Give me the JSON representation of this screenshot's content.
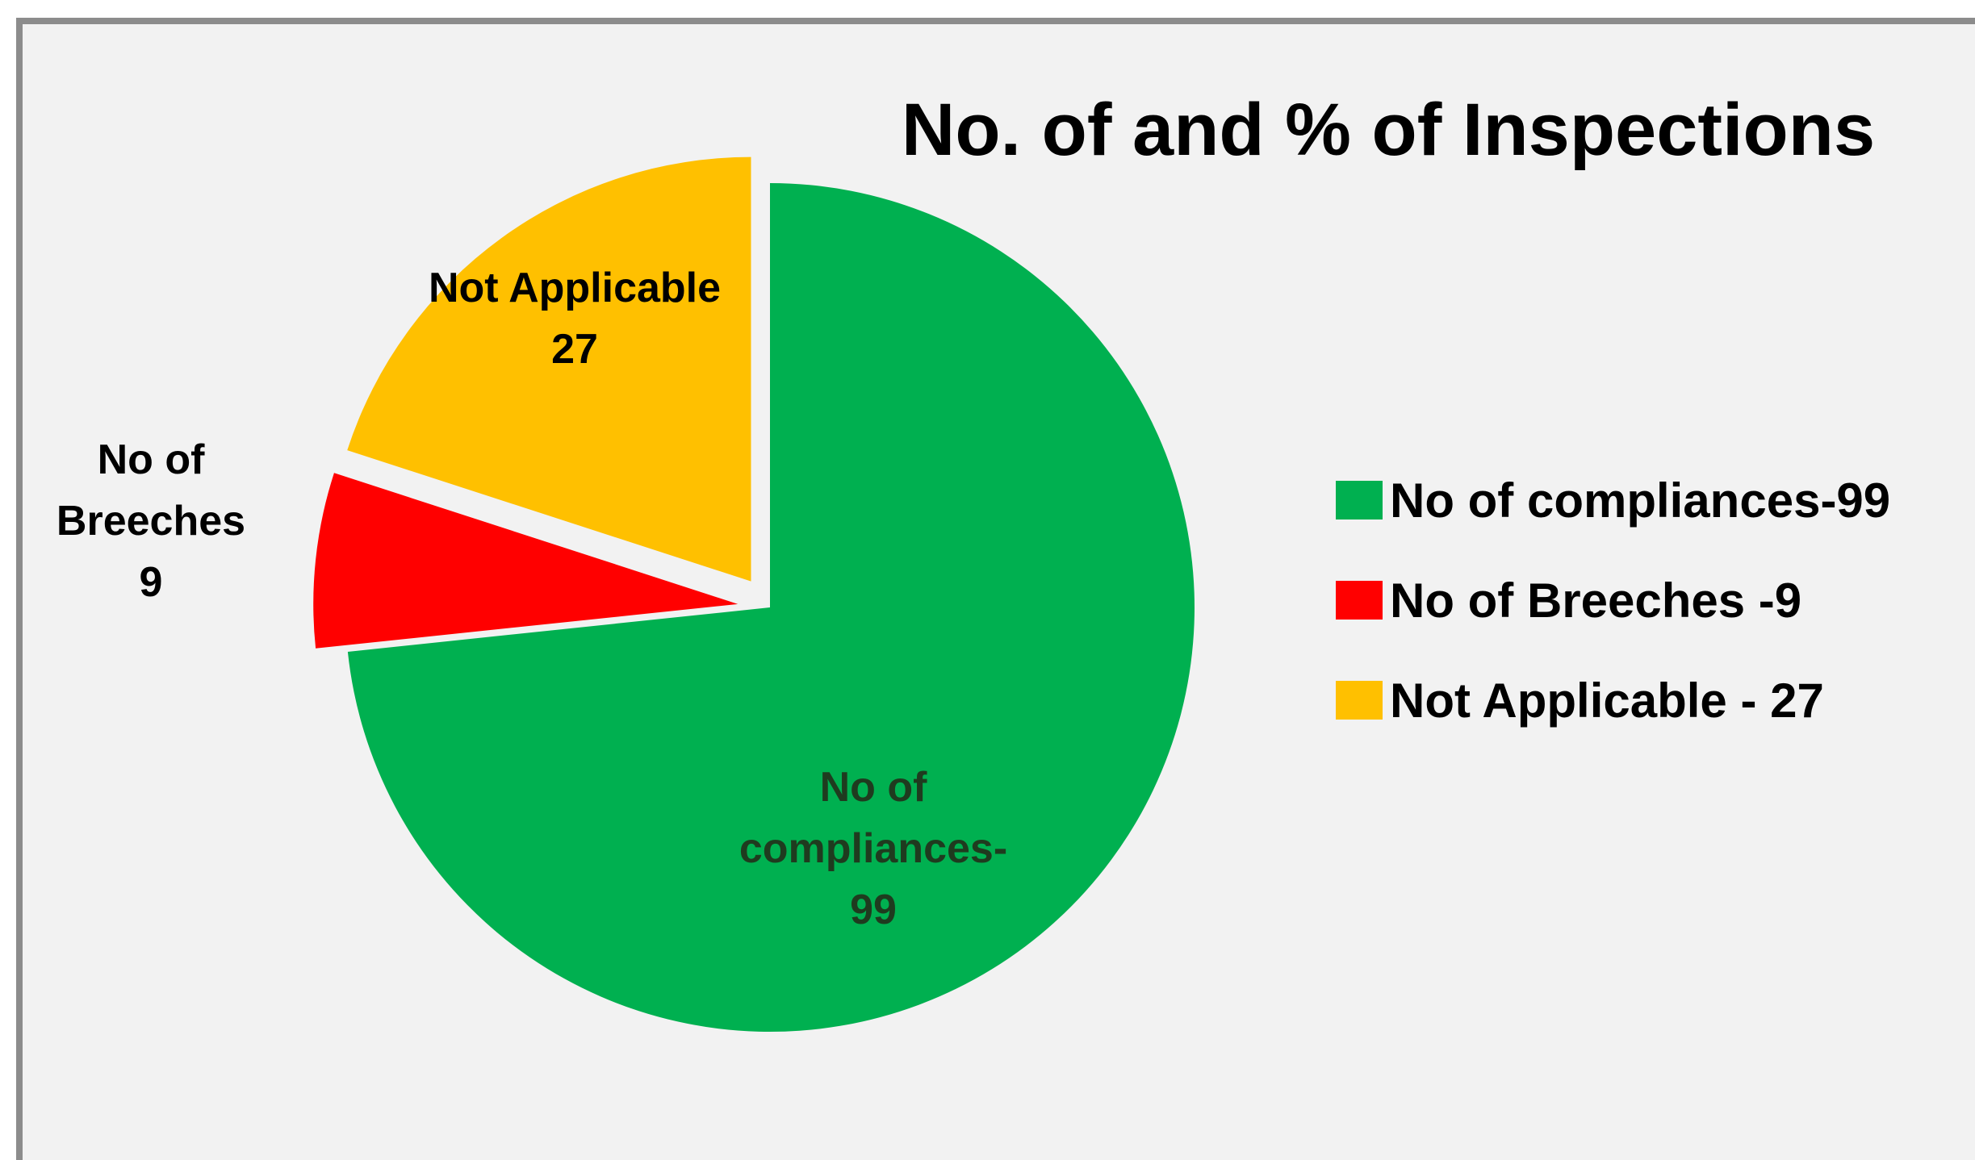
{
  "chart_data": {
    "type": "pie",
    "title": "No. of and % of Inspections",
    "slices": [
      {
        "name": "No of compliances-99",
        "value": 99,
        "color": "#00b050",
        "label_lines": [
          "No of",
          "compliances-",
          "99"
        ]
      },
      {
        "name": "No of Breeches -9",
        "value": 9,
        "color": "#ff0000",
        "label_lines": [
          "No of",
          "Breeches",
          "9"
        ]
      },
      {
        "name": "Not Applicable - 27",
        "value": 27,
        "color": "#ffc000",
        "label_lines": [
          "Not Applicable",
          "27"
        ]
      }
    ],
    "legend": [
      {
        "label": "No of compliances-99",
        "color": "#00b050"
      },
      {
        "label": "No of Breeches -9",
        "color": "#ff0000"
      },
      {
        "label": "Not Applicable - 27",
        "color": "#ffc000"
      }
    ],
    "legend_position": "right",
    "exploded": [
      "No of Breeches -9",
      "Not Applicable - 27"
    ]
  }
}
